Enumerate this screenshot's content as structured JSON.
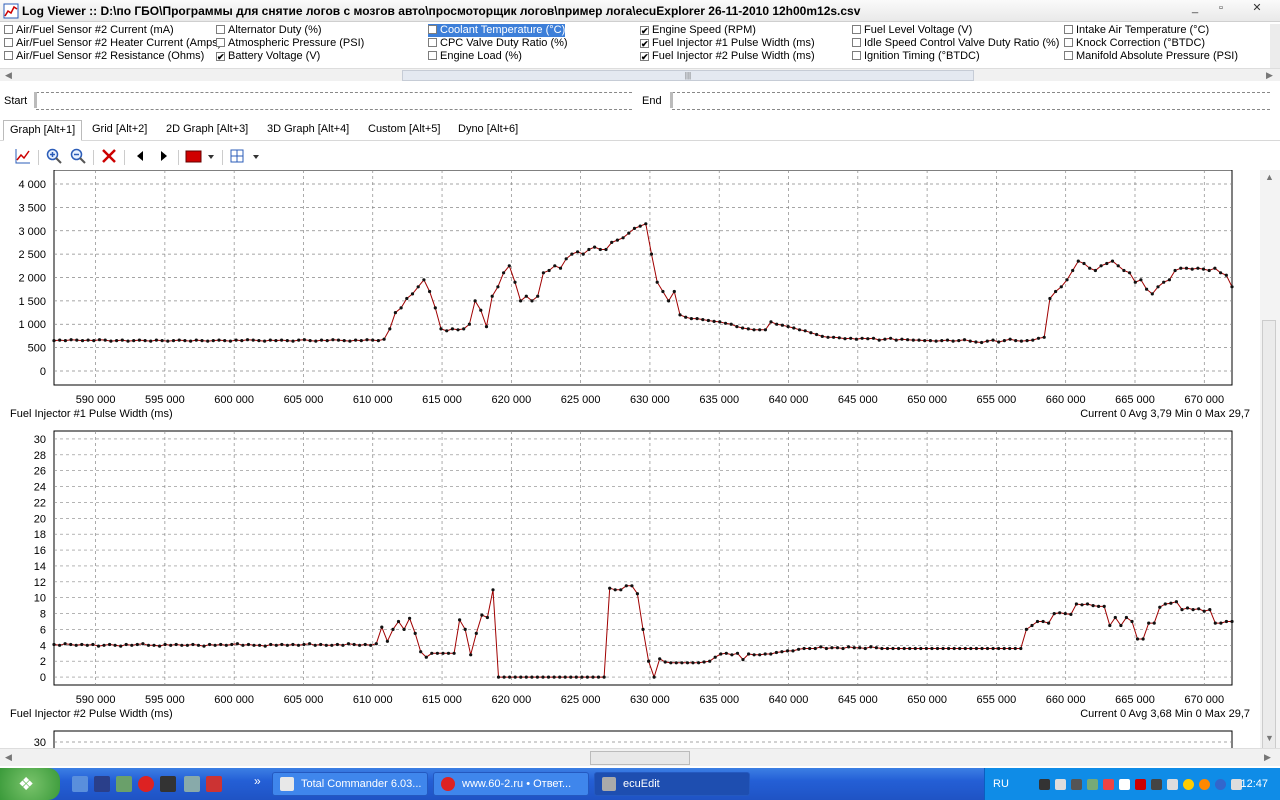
{
  "window": {
    "title": "Log Viewer :: D:\\по ГБО\\Программы для снятие логов с мозгов авто\\просмоторщик логов\\пример лога\\ecuExplorer  26-11-2010 12h00m12s.csv",
    "buttons": {
      "minimize": "_",
      "maximize": "▫",
      "close": "✕"
    }
  },
  "channels": [
    {
      "label": "Air/Fuel Sensor #2 Current (mA)",
      "checked": false
    },
    {
      "label": "Air/Fuel Sensor #2 Heater Current (Amps)",
      "checked": false
    },
    {
      "label": "Air/Fuel Sensor #2 Resistance (Ohms)",
      "checked": false
    },
    {
      "label": "Alternator Duty (%)",
      "checked": false
    },
    {
      "label": "Atmospheric Pressure (PSI)",
      "checked": false
    },
    {
      "label": "Battery Voltage (V)",
      "checked": true
    },
    {
      "label": "Coolant Temperature (°C)",
      "checked": false,
      "selected": true
    },
    {
      "label": "CPC Valve Duty Ratio (%)",
      "checked": false
    },
    {
      "label": "Engine Load (%)",
      "checked": false
    },
    {
      "label": "Engine Speed (RPM)",
      "checked": true
    },
    {
      "label": "Fuel Injector #1 Pulse Width (ms)",
      "checked": true
    },
    {
      "label": "Fuel Injector #2 Pulse Width (ms)",
      "checked": true
    },
    {
      "label": "Fuel Level Voltage (V)",
      "checked": false
    },
    {
      "label": "Idle Speed Control Valve Duty Ratio (%)",
      "checked": false
    },
    {
      "label": "Ignition Timing (°BTDC)",
      "checked": false
    },
    {
      "label": "Intake Air Temperature (°C)",
      "checked": false
    },
    {
      "label": "Knock Correction (°BTDC)",
      "checked": false
    },
    {
      "label": "Manifold Absolute Pressure (PSI)",
      "checked": false
    }
  ],
  "range": {
    "start_label": "Start",
    "end_label": "End"
  },
  "tabs": [
    {
      "label": "Graph [Alt+1]",
      "active": true
    },
    {
      "label": "Grid [Alt+2]"
    },
    {
      "label": "2D Graph [Alt+3]"
    },
    {
      "label": "3D Graph [Alt+4]"
    },
    {
      "label": "Custom [Alt+5]"
    },
    {
      "label": "Dyno [Alt+6]"
    }
  ],
  "toolbar_icons": [
    "chart-icon",
    "zoom-in-icon",
    "zoom-out-icon",
    "delete-icon",
    "prev-icon",
    "next-icon",
    "color-icon",
    "grid-icon"
  ],
  "chart_data": [
    {
      "type": "line",
      "series": [
        {
          "values": [
            650,
            660,
            650,
            670,
            660,
            650,
            660,
            650,
            670,
            660,
            640,
            650,
            660,
            640,
            650,
            660,
            650,
            640,
            660,
            650,
            640,
            650,
            660,
            650,
            640,
            660,
            650,
            640,
            650,
            660,
            650,
            640,
            660,
            650,
            670,
            660,
            650,
            640,
            660,
            650,
            660,
            650,
            640,
            660,
            670,
            650,
            640,
            660,
            650,
            670,
            660,
            650,
            640,
            660,
            650,
            670,
            660,
            650,
            680,
            900,
            1250,
            1350,
            1550,
            1650,
            1800,
            1950,
            1700,
            1350,
            900,
            860,
            900,
            880,
            900,
            1000,
            1500,
            1300,
            950,
            1600,
            1800,
            2100,
            2250,
            1900,
            1500,
            1600,
            1500,
            1600,
            2100,
            2150,
            2250,
            2200,
            2400,
            2500,
            2550,
            2500,
            2600,
            2650,
            2600,
            2600,
            2750,
            2800,
            2850,
            2950,
            3050,
            3100,
            3150,
            2500,
            1900,
            1700,
            1500,
            1700,
            1200,
            1150,
            1120,
            1120,
            1100,
            1080,
            1060,
            1050,
            1020,
            1000,
            950,
            920,
            900,
            880,
            880,
            880,
            1050,
            1000,
            980,
            950,
            920,
            880,
            860,
            820,
            780,
            740,
            720,
            720,
            710,
            690,
            700,
            680,
            700,
            690,
            700,
            660,
            680,
            700,
            660,
            680,
            670,
            660,
            660,
            650,
            650,
            640,
            650,
            660,
            640,
            650,
            670,
            640,
            620,
            610,
            640,
            660,
            620,
            650,
            680,
            650,
            640,
            650,
            660,
            700,
            720,
            1550,
            1700,
            1800,
            1950,
            2150,
            2350,
            2300,
            2200,
            2150,
            2250,
            2300,
            2350,
            2250,
            2150,
            2100,
            1900,
            1950,
            1750,
            1650,
            1800,
            1900,
            1950,
            2150,
            2200,
            2200,
            2180,
            2200,
            2180,
            2150,
            2200,
            2100,
            2050,
            1800
          ]
        }
      ],
      "x_start": 587000,
      "x_end": 672000,
      "ylim": [
        -300,
        4300
      ],
      "yticks": [
        "4 000",
        "3 500",
        "3 000",
        "2 500",
        "2 000",
        "1 500",
        "1 000",
        "500",
        "0"
      ],
      "ytick_values": [
        4000,
        3500,
        3000,
        2500,
        2000,
        1500,
        1000,
        500,
        0
      ],
      "xticks": [
        "590 000",
        "595 000",
        "600 000",
        "605 000",
        "610 000",
        "615 000",
        "620 000",
        "625 000",
        "630 000",
        "635 000",
        "640 000",
        "645 000",
        "650 000",
        "655 000",
        "660 000",
        "665 000",
        "670 000"
      ],
      "xtick_values": [
        590000,
        595000,
        600000,
        605000,
        610000,
        615000,
        620000,
        625000,
        630000,
        635000,
        640000,
        645000,
        650000,
        655000,
        660000,
        665000,
        670000
      ],
      "grid": true
    },
    {
      "type": "line",
      "title": "Fuel Injector #1 Pulse Width (ms)",
      "stats": "Current 0 Avg 3,79 Min 0 Max 29,7",
      "series": [
        {
          "name": "Fuel Injector #1 Pulse Width (ms)",
          "values": [
            4.1,
            4.0,
            4.2,
            4.1,
            4.0,
            4.1,
            4.0,
            4.1,
            3.9,
            4.0,
            4.1,
            4.0,
            3.9,
            4.1,
            4.0,
            4.1,
            4.2,
            4.0,
            4.0,
            3.9,
            4.1,
            4.0,
            4.1,
            4.0,
            4.0,
            4.1,
            4.0,
            3.9,
            4.1,
            4.0,
            4.1,
            4.0,
            4.1,
            4.2,
            4.0,
            4.1,
            4.0,
            4.0,
            3.9,
            4.1,
            4.0,
            4.1,
            4.0,
            4.1,
            4.0,
            4.1,
            4.2,
            4.0,
            4.1,
            4.0,
            4.0,
            4.1,
            4.0,
            4.2,
            4.1,
            4.0,
            4.1,
            4.0,
            4.2,
            6.3,
            4.5,
            6.0,
            7.0,
            6.0,
            7.4,
            5.5,
            3.2,
            2.5,
            3.0,
            3.0,
            3.0,
            3.0,
            3.0,
            7.2,
            6.0,
            2.8,
            5.5,
            7.8,
            7.5,
            11.0,
            0,
            0,
            0,
            0,
            0,
            0,
            0,
            0,
            0,
            0,
            0,
            0,
            0,
            0,
            0,
            0,
            0,
            0,
            0,
            0,
            11.2,
            11.0,
            11.0,
            11.5,
            11.5,
            10.5,
            6.0,
            2.0,
            0,
            2.3,
            1.9,
            1.8,
            1.8,
            1.8,
            1.8,
            1.8,
            1.8,
            1.9,
            2.0,
            2.5,
            2.9,
            3.0,
            2.8,
            3.0,
            2.2,
            2.9,
            2.8,
            2.8,
            2.9,
            2.9,
            3.1,
            3.2,
            3.3,
            3.3,
            3.5,
            3.6,
            3.6,
            3.6,
            3.8,
            3.6,
            3.7,
            3.7,
            3.6,
            3.8,
            3.7,
            3.7,
            3.6,
            3.8,
            3.7,
            3.6,
            3.6,
            3.6,
            3.6,
            3.6,
            3.6,
            3.6,
            3.6,
            3.6,
            3.6,
            3.6,
            3.6,
            3.6,
            3.6,
            3.6,
            3.6,
            3.6,
            3.6,
            3.6,
            3.6,
            3.6,
            3.6,
            3.6,
            3.6,
            3.6,
            3.6,
            6.0,
            6.5,
            7.0,
            7.0,
            6.8,
            8.0,
            8.1,
            8.0,
            7.9,
            9.2,
            9.1,
            9.2,
            9.0,
            8.9,
            8.9,
            6.5,
            7.5,
            6.5,
            7.5,
            7.0,
            4.8,
            4.8,
            6.8,
            6.8,
            8.8,
            9.2,
            9.3,
            9.5,
            8.5,
            8.7,
            8.5,
            8.6,
            8.3,
            8.5,
            6.8,
            6.8,
            7.0,
            7.0
          ]
        }
      ],
      "x_start": 587000,
      "x_end": 672000,
      "ylim": [
        -1,
        31
      ],
      "yticks": [
        "30",
        "28",
        "26",
        "24",
        "22",
        "20",
        "18",
        "16",
        "14",
        "12",
        "10",
        "8",
        "6",
        "4",
        "2",
        "0"
      ],
      "ytick_values": [
        30,
        28,
        26,
        24,
        22,
        20,
        18,
        16,
        14,
        12,
        10,
        8,
        6,
        4,
        2,
        0
      ],
      "xticks": [
        "590 000",
        "595 000",
        "600 000",
        "605 000",
        "610 000",
        "615 000",
        "620 000",
        "625 000",
        "630 000",
        "635 000",
        "640 000",
        "645 000",
        "650 000",
        "655 000",
        "660 000",
        "665 000",
        "670 000"
      ],
      "xtick_values": [
        590000,
        595000,
        600000,
        605000,
        610000,
        615000,
        620000,
        625000,
        630000,
        635000,
        640000,
        645000,
        650000,
        655000,
        660000,
        665000,
        670000
      ],
      "grid": true
    },
    {
      "type": "line",
      "title": "Fuel Injector #2 Pulse Width (ms)",
      "stats": "Current 0 Avg 3,68 Min 0 Max 29,7",
      "yticks": [
        "30"
      ],
      "ytick_values": [
        30
      ],
      "grid": true
    }
  ],
  "colors": {
    "series": "#a00000",
    "accent": "#3d7fd9",
    "grid": "#888888"
  },
  "taskbar": {
    "start_label": "",
    "buttons": [
      {
        "label": "Total Commander 6.03...",
        "active": false
      },
      {
        "label": "www.60-2.ru • Ответ...",
        "active": false
      },
      {
        "label": "ecuEdit",
        "active": true
      }
    ],
    "language": "RU",
    "clock": "12:47",
    "expand": "»"
  }
}
